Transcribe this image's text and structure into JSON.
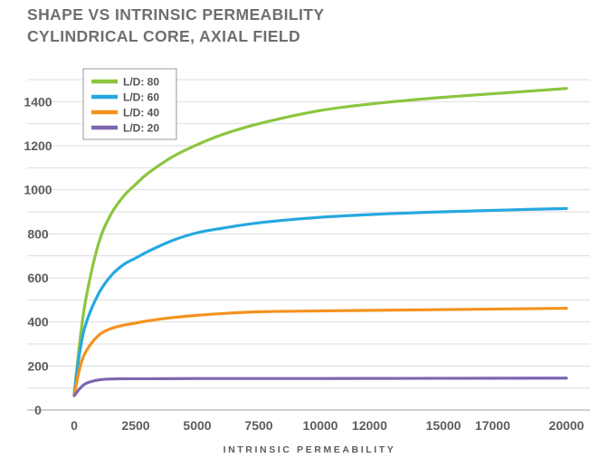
{
  "chart_data": {
    "type": "line",
    "title_lines": [
      "SHAPE VS INTRINSIC PERMEABILITY",
      "CYLINDRICAL CORE, AXIAL FIELD"
    ],
    "xlabel": "INTRINSIC PERMEABILITY",
    "ylabel": "",
    "xlim": [
      0,
      20000
    ],
    "ylim": [
      0,
      1500
    ],
    "x_ticks": [
      0,
      2500,
      5000,
      7500,
      10000,
      12000,
      15000,
      17000,
      20000
    ],
    "x_tick_labels": [
      "0",
      "2500",
      "5000",
      "7500",
      "10000",
      "12000",
      "15000",
      "17000",
      "20000"
    ],
    "y_ticks": [
      0,
      200,
      400,
      600,
      800,
      1000,
      1200,
      1400
    ],
    "y_tick_labels": [
      "0",
      "200",
      "400",
      "600",
      "800",
      "1000",
      "1200",
      "1400"
    ],
    "grid": "horizontal",
    "legend_position": "top-left",
    "series": [
      {
        "name": "L/D: 80",
        "color": "#8cc540",
        "x": [
          0,
          250,
          500,
          1000,
          1500,
          2000,
          2500,
          3000,
          4000,
          5000,
          6000,
          7500,
          10000,
          12500,
          15000,
          17500,
          20000
        ],
        "values": [
          75,
          330,
          520,
          760,
          890,
          970,
          1025,
          1075,
          1150,
          1205,
          1250,
          1300,
          1360,
          1395,
          1420,
          1440,
          1460
        ]
      },
      {
        "name": "L/D: 60",
        "color": "#26a8e0",
        "x": [
          0,
          250,
          500,
          1000,
          1500,
          2000,
          2500,
          3000,
          4000,
          5000,
          6000,
          7500,
          10000,
          12500,
          15000,
          17500,
          20000
        ],
        "values": [
          75,
          280,
          400,
          530,
          610,
          660,
          690,
          720,
          770,
          805,
          825,
          850,
          875,
          890,
          900,
          908,
          915
        ]
      },
      {
        "name": "L/D: 40",
        "color": "#f4921e",
        "x": [
          0,
          250,
          500,
          1000,
          1500,
          2000,
          2500,
          3000,
          4000,
          5000,
          6000,
          7500,
          10000,
          12500,
          15000,
          17500,
          20000
        ],
        "values": [
          70,
          200,
          270,
          340,
          370,
          385,
          395,
          405,
          420,
          430,
          438,
          446,
          450,
          453,
          456,
          459,
          462
        ]
      },
      {
        "name": "L/D: 20",
        "color": "#7d66b0",
        "x": [
          0,
          250,
          500,
          1000,
          1500,
          2000,
          2500,
          3000,
          5000,
          7500,
          10000,
          15000,
          20000
        ],
        "values": [
          65,
          100,
          122,
          137,
          141,
          142,
          142,
          142,
          143,
          143,
          143,
          144,
          145
        ]
      }
    ]
  }
}
